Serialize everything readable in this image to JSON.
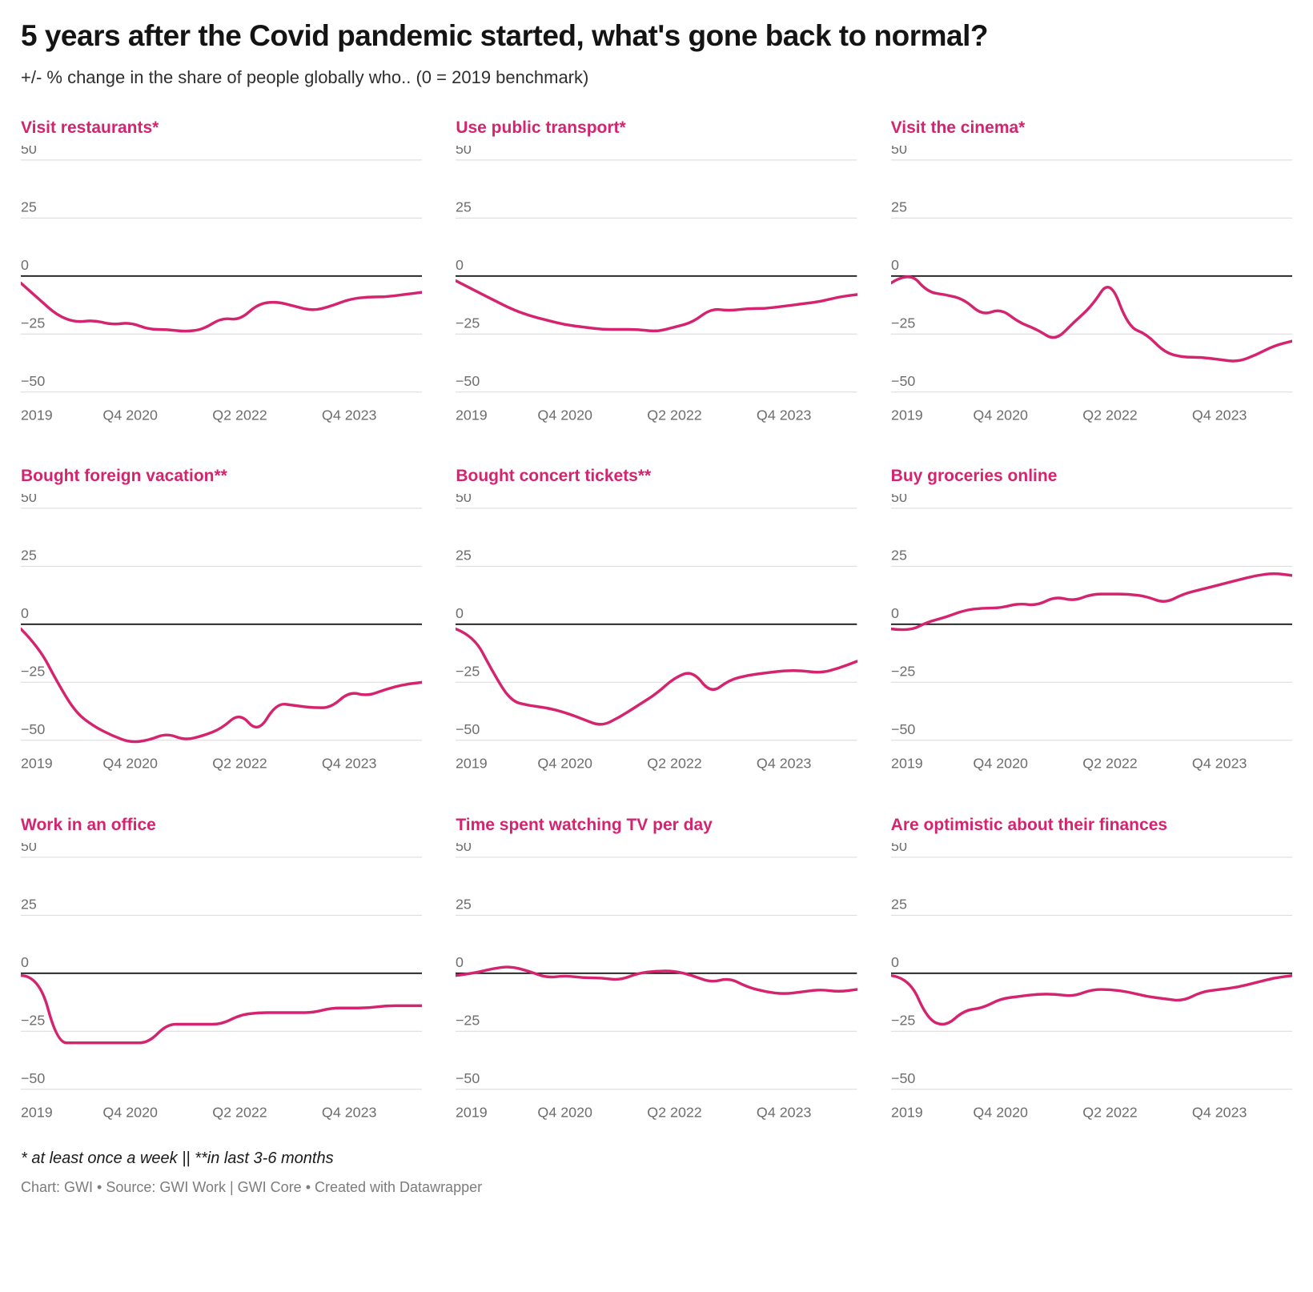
{
  "header": {
    "title": "5 years after the Covid pandemic started, what's gone back to normal?",
    "subtitle": "+/- % change in the share of people globally who.. (0 = 2019 benchmark)"
  },
  "footer": {
    "footnote": "* at least once a week || **in last 3-6 months",
    "attribution": "Chart: GWI • Source: GWI Work | GWI Core • Created with Datawrapper"
  },
  "line_color": "#d5246f",
  "axis": {
    "y_ticks": [
      50,
      25,
      0,
      -25,
      -50
    ],
    "ylim": [
      -50,
      50
    ],
    "x_tick_labels": [
      "2019",
      "Q4 2020",
      "Q2 2022",
      "Q4 2023"
    ],
    "x_tick_indices": [
      0,
      6,
      12,
      18
    ],
    "grid": true,
    "zero_baseline": true
  },
  "chart_data": [
    {
      "type": "line",
      "title": "Visit restaurants*",
      "values": [
        -3,
        -10,
        -17,
        -20,
        -19,
        -21,
        -20,
        -23,
        -23,
        -24,
        -23,
        -18,
        -19,
        -12,
        -11,
        -13,
        -15,
        -13,
        -10,
        -9,
        -9,
        -8,
        -7
      ]
    },
    {
      "type": "line",
      "title": "Use public transport*",
      "values": [
        -2,
        -6,
        -10,
        -14,
        -17,
        -19,
        -21,
        -22,
        -23,
        -23,
        -23,
        -24,
        -22,
        -20,
        -14,
        -15,
        -14,
        -14,
        -13,
        -12,
        -11,
        -9,
        -8
      ]
    },
    {
      "type": "line",
      "title": "Visit the cinema*",
      "values": [
        -3,
        2,
        -7,
        -8,
        -10,
        -17,
        -14,
        -20,
        -23,
        -28,
        -20,
        -13,
        -1,
        -22,
        -25,
        -33,
        -35,
        -35,
        -36,
        -37,
        -34,
        -30,
        -28
      ]
    },
    {
      "type": "line",
      "title": "Bought foreign vacation**",
      "values": [
        -2,
        -10,
        -25,
        -38,
        -44,
        -48,
        -51,
        -50,
        -47,
        -50,
        -48,
        -45,
        -38,
        -47,
        -34,
        -35,
        -36,
        -36,
        -29,
        -31,
        -28,
        -26,
        -25
      ]
    },
    {
      "type": "line",
      "title": "Bought concert tickets**",
      "values": [
        -2,
        -5,
        -20,
        -33,
        -35,
        -36,
        -38,
        -41,
        -44,
        -40,
        -35,
        -30,
        -23,
        -20,
        -30,
        -24,
        -22,
        -21,
        -20,
        -20,
        -21,
        -19,
        -16
      ]
    },
    {
      "type": "line",
      "title": "Buy groceries online",
      "values": [
        -2,
        -3,
        1,
        3,
        6,
        7,
        7,
        9,
        8,
        12,
        10,
        13,
        13,
        13,
        12,
        9,
        13,
        15,
        17,
        19,
        21,
        22,
        21
      ]
    },
    {
      "type": "line",
      "title": "Work in an office",
      "values": [
        -1,
        -1,
        -30,
        -30,
        -30,
        -30,
        -30,
        -30,
        -22,
        -22,
        -22,
        -22,
        -18,
        -17,
        -17,
        -17,
        -17,
        -15,
        -15,
        -15,
        -14,
        -14,
        -14
      ]
    },
    {
      "type": "line",
      "title": "Time spent watching TV per day",
      "values": [
        -1,
        0,
        2,
        3,
        1,
        -2,
        -1,
        -2,
        -2,
        -3,
        0,
        1,
        1,
        -1,
        -4,
        -2,
        -6,
        -8,
        -9,
        -8,
        -7,
        -8,
        -7
      ]
    },
    {
      "type": "line",
      "title": "Are optimistic about their finances",
      "values": [
        -1,
        -2,
        -20,
        -23,
        -16,
        -15,
        -11,
        -10,
        -9,
        -9,
        -10,
        -7,
        -7,
        -8,
        -10,
        -11,
        -12,
        -8,
        -7,
        -6,
        -4,
        -2,
        -1
      ]
    }
  ]
}
